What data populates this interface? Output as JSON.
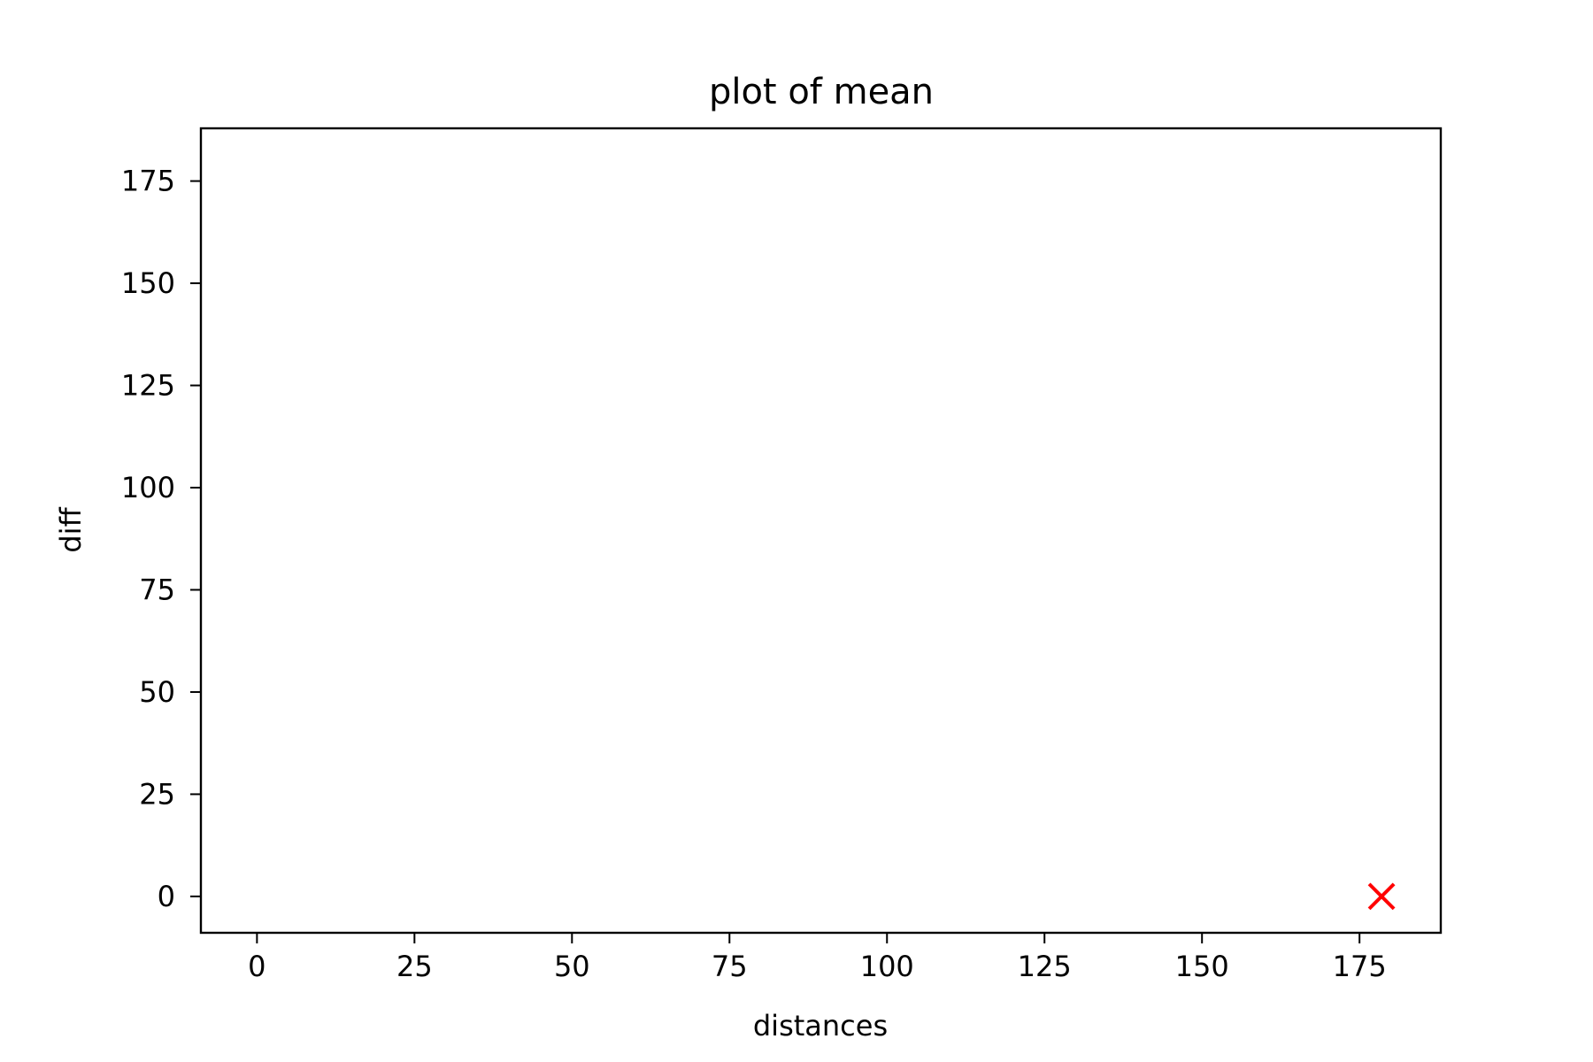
{
  "chart_data": {
    "type": "scatter",
    "title": "plot of mean",
    "xlabel": "distances",
    "ylabel": "diff",
    "xlim": [
      -8.9,
      187.9
    ],
    "ylim": [
      -8.9,
      187.9
    ],
    "xticks": [
      0,
      25,
      50,
      75,
      100,
      125,
      150,
      175
    ],
    "yticks": [
      0,
      25,
      50,
      75,
      100,
      125,
      150,
      175
    ],
    "grid": false,
    "series": [
      {
        "marker": "x",
        "color": "#ff0000",
        "points": [
          {
            "x": 178.5,
            "y": 0
          }
        ]
      }
    ]
  }
}
